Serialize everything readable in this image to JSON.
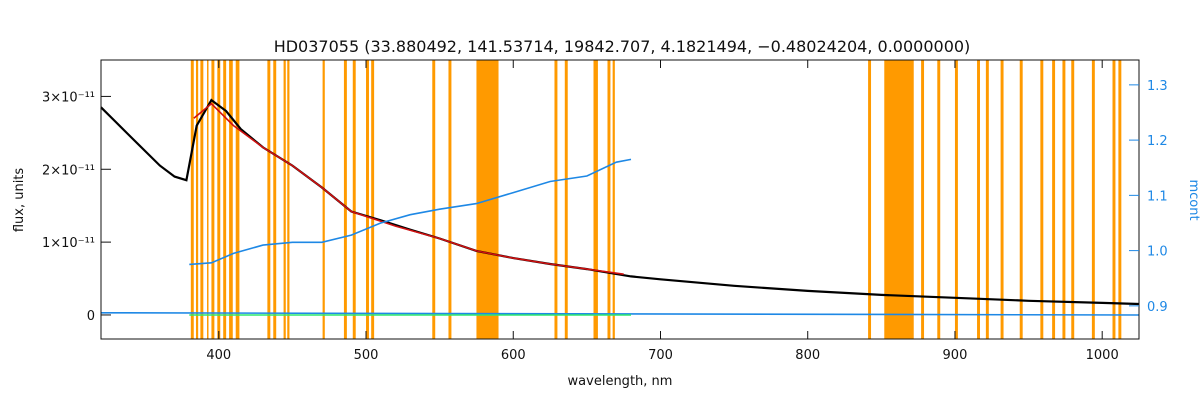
{
  "chart_data": {
    "type": "line",
    "title": "HD037055    (33.880492, 141.53714, 19842.707, 4.1821494, −0.48024204, 0.0000000)",
    "xlabel": "wavelength, nm",
    "ylabel": "flux, units",
    "y2label": "mcont",
    "xlim": [
      320,
      1025
    ],
    "ylim": [
      -3.3e-12,
      3.5e-11
    ],
    "y2lim": [
      0.84,
      1.345
    ],
    "x_ticks": [
      {
        "value": 400,
        "label": "400"
      },
      {
        "value": 500,
        "label": "500"
      },
      {
        "value": 600,
        "label": "600"
      },
      {
        "value": 700,
        "label": "700"
      },
      {
        "value": 800,
        "label": "800"
      },
      {
        "value": 900,
        "label": "900"
      },
      {
        "value": 1000,
        "label": "1000"
      }
    ],
    "y_ticks": [
      {
        "value": 0,
        "label": "0"
      },
      {
        "value": 1e-11,
        "label": "1×10⁻¹¹"
      },
      {
        "value": 2e-11,
        "label": "2×10⁻¹¹"
      },
      {
        "value": 3e-11,
        "label": "3×10⁻¹¹"
      }
    ],
    "y2_ticks": [
      {
        "value": 0.9,
        "label": "0.9"
      },
      {
        "value": 1.0,
        "label": "1.0"
      },
      {
        "value": 1.1,
        "label": "1.1"
      },
      {
        "value": 1.2,
        "label": "1.2"
      },
      {
        "value": 1.3,
        "label": "1.3"
      }
    ],
    "masked_regions": [
      [
        381,
        383
      ],
      [
        384.5,
        386
      ],
      [
        387.5,
        389.5
      ],
      [
        392,
        393
      ],
      [
        395,
        397
      ],
      [
        399,
        401
      ],
      [
        403,
        405
      ],
      [
        407,
        409.5
      ],
      [
        411.5,
        414
      ],
      [
        433,
        435
      ],
      [
        437,
        439
      ],
      [
        444,
        445.5
      ],
      [
        446.5,
        448
      ],
      [
        470.5,
        472
      ],
      [
        485,
        487
      ],
      [
        491,
        493
      ],
      [
        500,
        502
      ],
      [
        503.5,
        505.5
      ],
      [
        545,
        547
      ],
      [
        556,
        558
      ],
      [
        575,
        590
      ],
      [
        628,
        630
      ],
      [
        635,
        637
      ],
      [
        654.5,
        657.5
      ],
      [
        664,
        666
      ],
      [
        667.5,
        669
      ],
      [
        841,
        843
      ],
      [
        852,
        872
      ],
      [
        877,
        879
      ],
      [
        888,
        890
      ],
      [
        900,
        902
      ],
      [
        915,
        917
      ],
      [
        921,
        923
      ],
      [
        931,
        933
      ],
      [
        944,
        946
      ],
      [
        958,
        960
      ],
      [
        966,
        968
      ],
      [
        973,
        975
      ],
      [
        979,
        981
      ],
      [
        993,
        995
      ],
      [
        1007,
        1009
      ],
      [
        1011,
        1013
      ]
    ],
    "series": [
      {
        "color": "#000000",
        "points": [
          [
            320,
            2.85e-11
          ],
          [
            330,
            2.65e-11
          ],
          [
            340,
            2.45e-11
          ],
          [
            350,
            2.25e-11
          ],
          [
            360,
            2.05e-11
          ],
          [
            370,
            1.9e-11
          ],
          [
            378,
            1.85e-11
          ],
          [
            385,
            2.6e-11
          ],
          [
            395,
            2.95e-11
          ],
          [
            405,
            2.8e-11
          ],
          [
            415,
            2.55e-11
          ],
          [
            430,
            2.3e-11
          ],
          [
            450,
            2.05e-11
          ],
          [
            470,
            1.75e-11
          ],
          [
            490,
            1.42e-11
          ],
          [
            510,
            1.3e-11
          ],
          [
            530,
            1.17e-11
          ],
          [
            550,
            1.05e-11
          ],
          [
            575,
            8.8e-12
          ],
          [
            600,
            7.8e-12
          ],
          [
            625,
            7e-12
          ],
          [
            650,
            6.3e-12
          ],
          [
            680,
            5.3e-12
          ],
          [
            700,
            4.9e-12
          ],
          [
            750,
            4e-12
          ],
          [
            800,
            3.3e-12
          ],
          [
            850,
            2.75e-12
          ],
          [
            900,
            2.35e-12
          ],
          [
            950,
            1.95e-12
          ],
          [
            1000,
            1.65e-12
          ],
          [
            1025,
            1.5e-12
          ]
        ]
      },
      {
        "color": "#d01010",
        "points": [
          [
            383,
            2.7e-11
          ],
          [
            395,
            2.9e-11
          ],
          [
            410,
            2.6e-11
          ],
          [
            430,
            2.3e-11
          ],
          [
            450,
            2.05e-11
          ],
          [
            470,
            1.75e-11
          ],
          [
            490,
            1.42e-11
          ],
          [
            520,
            1.22e-11
          ],
          [
            550,
            1.05e-11
          ],
          [
            575,
            8.8e-12
          ],
          [
            600,
            7.8e-12
          ],
          [
            625,
            7e-12
          ],
          [
            650,
            6.3e-12
          ],
          [
            675,
            5.6e-12
          ]
        ]
      },
      {
        "color": "#1e88e5",
        "axis": "right",
        "points": [
          [
            380,
            0.975
          ],
          [
            395,
            0.978
          ],
          [
            410,
            0.995
          ],
          [
            430,
            1.01
          ],
          [
            450,
            1.015
          ],
          [
            470,
            1.015
          ],
          [
            490,
            1.028
          ],
          [
            510,
            1.05
          ],
          [
            530,
            1.065
          ],
          [
            550,
            1.075
          ],
          [
            575,
            1.085
          ],
          [
            600,
            1.105
          ],
          [
            625,
            1.125
          ],
          [
            650,
            1.135
          ],
          [
            670,
            1.16
          ],
          [
            680,
            1.165
          ]
        ]
      },
      {
        "color": "#1e88e5",
        "points": [
          [
            320,
            3e-13
          ],
          [
            1025,
            0
          ]
        ]
      },
      {
        "color": "#2ee86e",
        "points": [
          [
            380,
            0
          ],
          [
            410,
            0
          ],
          [
            440,
            0
          ],
          [
            480,
            0
          ],
          [
            530,
            0
          ],
          [
            580,
            0
          ],
          [
            630,
            0
          ],
          [
            680,
            0
          ]
        ]
      }
    ],
    "colors": {
      "mask": "#ff9a00",
      "observed": "#000000",
      "model": "#d01010",
      "continuum": "#1e88e5",
      "residual": "#2ee86e"
    },
    "grid": false,
    "legend": "none"
  }
}
